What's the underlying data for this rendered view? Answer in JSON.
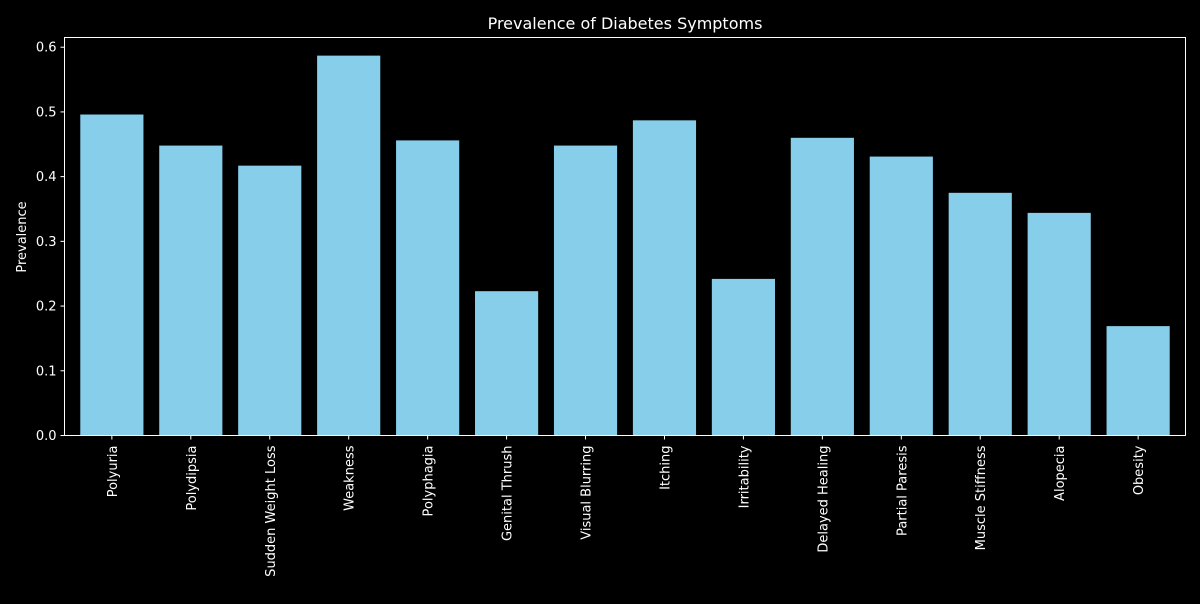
{
  "colors": {
    "background": "#000000",
    "bar": "#87CEEB",
    "text": "#FFFFFF",
    "axis": "#FFFFFF"
  },
  "chart_data": {
    "type": "bar",
    "title": "Prevalence of Diabetes Symptoms",
    "xlabel": "",
    "ylabel": "Prevalence",
    "ylim": [
      0,
      0.615
    ],
    "yticks": [
      "0.0",
      "0.1",
      "0.2",
      "0.3",
      "0.4",
      "0.5",
      "0.6"
    ],
    "grid": false,
    "categories": [
      "Polyuria",
      "Polydipsia",
      "Sudden Weight Loss",
      "Weakness",
      "Polyphagia",
      "Genital Thrush",
      "Visual Blurring",
      "Itching",
      "Irritability",
      "Delayed Healing",
      "Partial Paresis",
      "Muscle Stiffness",
      "Alopecia",
      "Obesity"
    ],
    "values": [
      0.496,
      0.448,
      0.417,
      0.587,
      0.456,
      0.223,
      0.448,
      0.487,
      0.242,
      0.46,
      0.431,
      0.375,
      0.344,
      0.169
    ]
  }
}
